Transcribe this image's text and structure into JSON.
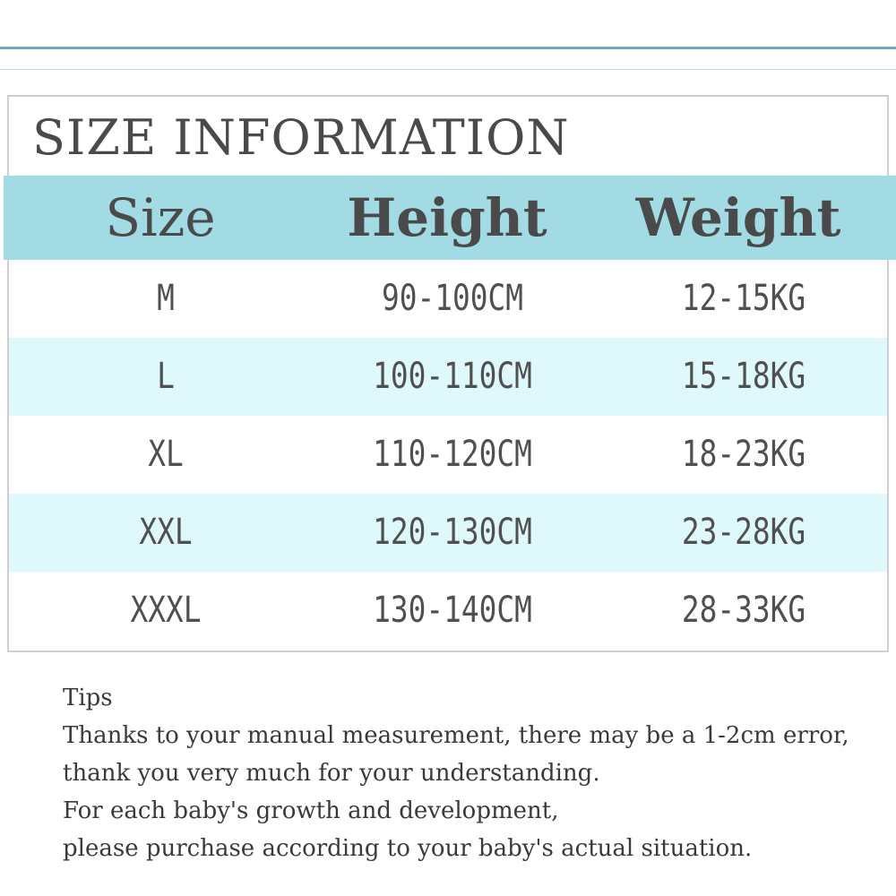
{
  "title": "SIZE INFORMATION",
  "table": {
    "headers": [
      "Size",
      "Height",
      "Weight"
    ],
    "rows": [
      [
        "M",
        "90-100CM",
        "12-15KG"
      ],
      [
        "L",
        "100-110CM",
        "15-18KG"
      ],
      [
        "XL",
        "110-120CM",
        "18-23KG"
      ],
      [
        "XXL",
        "120-130CM",
        "23-28KG"
      ],
      [
        "XXXL",
        "130-140CM",
        "28-33KG"
      ]
    ]
  },
  "tips": {
    "heading": "Tips",
    "lines": [
      "Thanks to your manual measurement, there may be a 1-2cm error,",
      "thank you very much for your understanding.",
      "For each baby's growth and development,",
      "please purchase according to your baby's actual situation."
    ]
  },
  "colors": {
    "header_band": "#a3dbe5",
    "alt_row": "#dff8fc",
    "accent_line": "#6aaeb4"
  }
}
